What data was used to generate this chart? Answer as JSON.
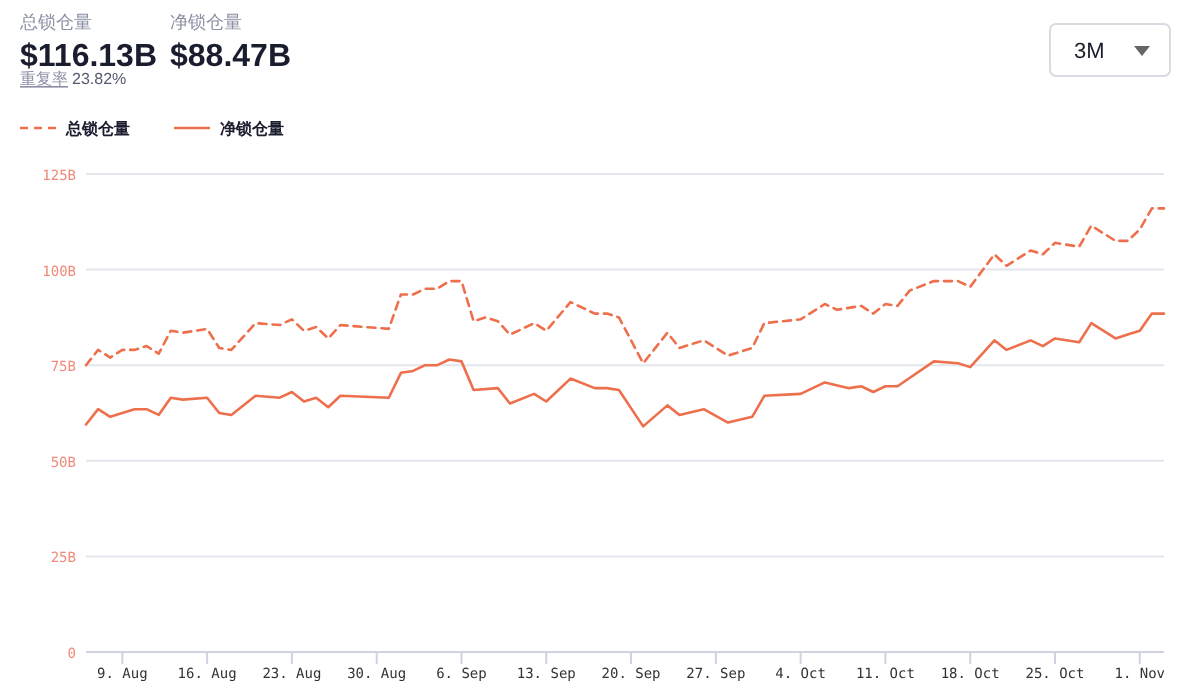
{
  "chart_data": {
    "type": "line",
    "annotations": [
      "总锁仓量",
      "$116.13B",
      "净锁仓量",
      "$88.47B",
      "重复率",
      "23.82%",
      "3M"
    ],
    "legend": "top left",
    "grid": "y",
    "xlim": [
      "--08-06",
      "--11-03"
    ],
    "xticks": [
      {
        "value": "--08-09",
        "label": "9. Aug"
      },
      {
        "value": "--08-16",
        "label": "16. Aug"
      },
      {
        "value": "--08-23",
        "label": "23. Aug"
      },
      {
        "value": "--08-30",
        "label": "30. Aug"
      },
      {
        "value": "--09-06",
        "label": "6. Sep"
      },
      {
        "value": "--09-13",
        "label": "13. Sep"
      },
      {
        "value": "--09-20",
        "label": "20. Sep"
      },
      {
        "value": "--09-27",
        "label": "27. Sep"
      },
      {
        "value": "--10-04",
        "label": "4. Oct"
      },
      {
        "value": "--10-11",
        "label": "11. Oct"
      },
      {
        "value": "--10-18",
        "label": "18. Oct"
      },
      {
        "value": "--10-25",
        "label": "25. Oct"
      },
      {
        "value": "--11-01",
        "label": "1. Nov"
      }
    ],
    "ylim": [
      0,
      125
    ],
    "yticks": [
      0,
      {
        "value": 25,
        "label": "25B"
      },
      {
        "value": 50,
        "label": "50B"
      },
      {
        "value": 75,
        "label": "75B"
      },
      {
        "value": 100,
        "label": "100B"
      },
      {
        "value": 125,
        "label": "125B"
      }
    ],
    "series": [
      {
        "name": "总锁仓量",
        "color": "#ee6f4c",
        "line_style": "dashed",
        "x": [
          "--08-06",
          "--08-07",
          "--08-08",
          "--08-09",
          "--08-10",
          "--08-11",
          "--08-12",
          "--08-13",
          "--08-14",
          "--08-16",
          "--08-17",
          "--08-18",
          "--08-20",
          "--08-22",
          "--08-23",
          "--08-24",
          "--08-25",
          "--08-26",
          "--08-27",
          "--08-29",
          "--08-31",
          "--09-01",
          "--09-02",
          "--09-03",
          "--09-04",
          "--09-05",
          "--09-06",
          "--09-07",
          "--09-08",
          "--09-09",
          "--09-10",
          "--09-12",
          "--09-13",
          "--09-15",
          "--09-17",
          "--09-18",
          "--09-19",
          "--09-21",
          "--09-23",
          "--09-24",
          "--09-26",
          "--09-28",
          "--09-30",
          "--10-01",
          "--10-04",
          "--10-06",
          "--10-07",
          "--10-09",
          "--10-10",
          "--10-11",
          "--10-12",
          "--10-13",
          "--10-15",
          "--10-17",
          "--10-18",
          "--10-20",
          "--10-21",
          "--10-23",
          "--10-24",
          "--10-25",
          "--10-27",
          "--10-28",
          "--10-30",
          "--10-31",
          "--11-01",
          "--11-02",
          "--11-03"
        ],
        "values": [
          75,
          79,
          77,
          79,
          79,
          80,
          78,
          84,
          83.5,
          84.5,
          79.5,
          79,
          86,
          85.5,
          87,
          84,
          85,
          82,
          85.5,
          85,
          84.5,
          93.5,
          93.5,
          95,
          95,
          97,
          97,
          86.5,
          87.5,
          86.5,
          83,
          86,
          84,
          91.5,
          88.5,
          88.5,
          87.5,
          75.5,
          83.5,
          79.5,
          81.5,
          77.5,
          79.5,
          86,
          87,
          91,
          89.5,
          90.5,
          88.5,
          91,
          90.5,
          94.5,
          97,
          97,
          95.5,
          104,
          101,
          105,
          104,
          107,
          106,
          111.5,
          107.5,
          107.5,
          110.5,
          116,
          116
        ]
      },
      {
        "name": "净锁仓量",
        "color": "#ee6f4c",
        "line_style": "solid",
        "x": [
          "--08-06",
          "--08-07",
          "--08-08",
          "--08-10",
          "--08-11",
          "--08-12",
          "--08-13",
          "--08-14",
          "--08-16",
          "--08-17",
          "--08-18",
          "--08-20",
          "--08-22",
          "--08-23",
          "--08-24",
          "--08-25",
          "--08-26",
          "--08-27",
          "--08-31",
          "--09-01",
          "--09-02",
          "--09-03",
          "--09-04",
          "--09-05",
          "--09-06",
          "--09-07",
          "--09-09",
          "--09-10",
          "--09-12",
          "--09-13",
          "--09-15",
          "--09-17",
          "--09-18",
          "--09-19",
          "--09-21",
          "--09-23",
          "--09-24",
          "--09-26",
          "--09-28",
          "--09-30",
          "--10-01",
          "--10-04",
          "--10-06",
          "--10-08",
          "--10-09",
          "--10-10",
          "--10-11",
          "--10-12",
          "--10-15",
          "--10-17",
          "--10-18",
          "--10-20",
          "--10-21",
          "--10-23",
          "--10-24",
          "--10-25",
          "--10-27",
          "--10-28",
          "--10-30",
          "--10-31",
          "--11-01",
          "--11-02",
          "--11-03"
        ],
        "values": [
          59.5,
          63.5,
          61.5,
          63.5,
          63.5,
          62,
          66.5,
          66,
          66.5,
          62.5,
          62,
          67,
          66.5,
          68,
          65.5,
          66.5,
          64,
          67,
          66.5,
          73,
          73.5,
          75,
          75,
          76.5,
          76,
          68.5,
          69,
          65,
          67.5,
          65.5,
          71.5,
          69,
          69,
          68.5,
          59,
          64.5,
          62,
          63.5,
          60,
          61.5,
          67,
          67.5,
          70.5,
          69,
          69.5,
          68,
          69.5,
          69.5,
          76,
          75.5,
          74.5,
          81.5,
          79,
          81.5,
          80,
          82,
          81,
          86,
          82,
          83,
          84,
          88.5,
          88.5
        ]
      }
    ]
  }
}
